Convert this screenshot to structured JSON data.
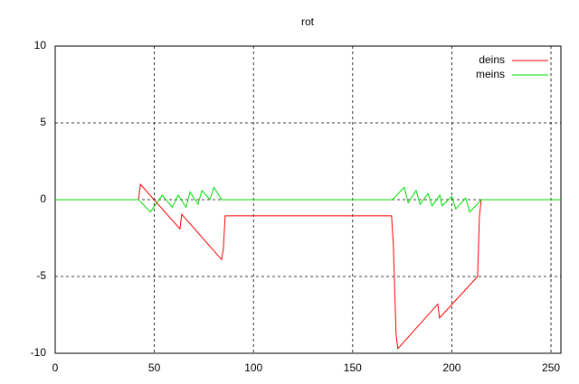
{
  "chart_data": {
    "type": "line",
    "title": "rot",
    "xlim": [
      0,
      255
    ],
    "ylim": [
      -10,
      10
    ],
    "xticks": [
      0,
      50,
      100,
      150,
      200,
      250
    ],
    "yticks": [
      -10,
      -5,
      0,
      5,
      10
    ],
    "grid": true,
    "legend": "top-right",
    "series": [
      {
        "name": "deins",
        "color": "#ff0000",
        "x": [
          42,
          43,
          62.9,
          63.8,
          83.9,
          84.8,
          85.7,
          169.6,
          170.5,
          171.9,
          172.8,
          192.9,
          193.8,
          213,
          213.9,
          214.8
        ],
        "values": [
          0,
          1.0,
          -1.9,
          -0.95,
          -3.9,
          -3.2,
          -1.05,
          -1.05,
          -2.9,
          -8.8,
          -9.7,
          -6.8,
          -7.7,
          -5,
          -1.1,
          0
        ]
      },
      {
        "name": "meins",
        "color": "#00dd00",
        "x": [
          0,
          42,
          48,
          54,
          59,
          62,
          66,
          68,
          72,
          74,
          78,
          80,
          84,
          170,
          176,
          178,
          182,
          184,
          188,
          190,
          194,
          195,
          200,
          202,
          207,
          209,
          215,
          255
        ],
        "values": [
          0,
          0,
          -0.8,
          0.3,
          -0.5,
          0.3,
          -0.5,
          0.5,
          -0.3,
          0.6,
          0,
          0.8,
          0,
          0,
          0.8,
          -0.2,
          0.6,
          -0.3,
          0.4,
          -0.4,
          0.3,
          -0.4,
          0.2,
          -0.6,
          0.1,
          -0.8,
          0,
          0
        ]
      }
    ]
  }
}
